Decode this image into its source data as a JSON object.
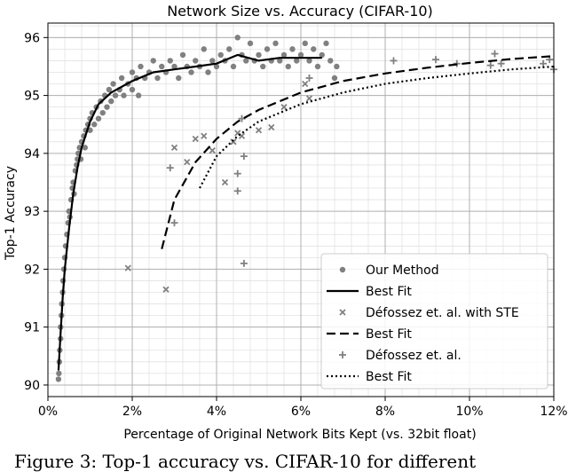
{
  "caption": "Figure 3: Top-1 accuracy vs. CIFAR-10 for different",
  "chart_data": {
    "type": "scatter",
    "title": "Network Size vs. Accuracy (CIFAR-10)",
    "xlabel": "Percentage of Original Network Bits Kept (vs. 32bit float)",
    "ylabel": "Top-1 Accuracy",
    "xlim": [
      0,
      12
    ],
    "ylim": [
      89.8,
      96.25
    ],
    "x_ticks": [
      0,
      2,
      4,
      6,
      8,
      10,
      12
    ],
    "x_tick_labels": [
      "0%",
      "2%",
      "4%",
      "6%",
      "8%",
      "10%",
      "12%"
    ],
    "y_ticks": [
      90,
      91,
      92,
      93,
      94,
      95,
      96
    ],
    "y_tick_labels": [
      "90",
      "91",
      "92",
      "93",
      "94",
      "95",
      "96"
    ],
    "grid": "major and minor",
    "legend_position": "lower-right",
    "colors": {
      "our_method": "#808080",
      "fit": "#000000",
      "grid_major": "#b0b0b0",
      "grid_minor": "#e2e2e2"
    },
    "series": [
      {
        "name": "Our Method",
        "kind": "scatter",
        "marker": "circle",
        "points": [
          [
            0.25,
            90.1
          ],
          [
            0.26,
            90.2
          ],
          [
            0.27,
            90.4
          ],
          [
            0.28,
            90.6
          ],
          [
            0.3,
            90.8
          ],
          [
            0.3,
            91.0
          ],
          [
            0.32,
            91.2
          ],
          [
            0.33,
            91.4
          ],
          [
            0.35,
            91.6
          ],
          [
            0.36,
            91.8
          ],
          [
            0.38,
            92.0
          ],
          [
            0.4,
            92.2
          ],
          [
            0.42,
            92.4
          ],
          [
            0.45,
            92.6
          ],
          [
            0.48,
            92.8
          ],
          [
            0.5,
            93.0
          ],
          [
            0.52,
            92.9
          ],
          [
            0.55,
            93.2
          ],
          [
            0.58,
            93.4
          ],
          [
            0.6,
            93.5
          ],
          [
            0.62,
            93.3
          ],
          [
            0.65,
            93.7
          ],
          [
            0.68,
            93.8
          ],
          [
            0.7,
            93.9
          ],
          [
            0.72,
            94.0
          ],
          [
            0.75,
            94.1
          ],
          [
            0.78,
            93.9
          ],
          [
            0.8,
            94.2
          ],
          [
            0.85,
            94.3
          ],
          [
            0.88,
            94.1
          ],
          [
            0.9,
            94.4
          ],
          [
            0.95,
            94.5
          ],
          [
            1.0,
            94.4
          ],
          [
            1.0,
            94.6
          ],
          [
            1.05,
            94.7
          ],
          [
            1.1,
            94.5
          ],
          [
            1.15,
            94.8
          ],
          [
            1.2,
            94.6
          ],
          [
            1.25,
            94.9
          ],
          [
            1.3,
            94.7
          ],
          [
            1.35,
            95.0
          ],
          [
            1.4,
            94.8
          ],
          [
            1.45,
            95.1
          ],
          [
            1.5,
            94.9
          ],
          [
            1.55,
            95.2
          ],
          [
            1.6,
            95.0
          ],
          [
            1.7,
            95.1
          ],
          [
            1.75,
            95.3
          ],
          [
            1.8,
            95.0
          ],
          [
            1.9,
            95.2
          ],
          [
            2.0,
            95.1
          ],
          [
            2.0,
            95.4
          ],
          [
            2.1,
            95.3
          ],
          [
            2.15,
            95.0
          ],
          [
            2.2,
            95.5
          ],
          [
            2.3,
            95.3
          ],
          [
            2.4,
            95.4
          ],
          [
            2.5,
            95.6
          ],
          [
            2.6,
            95.3
          ],
          [
            2.7,
            95.5
          ],
          [
            2.8,
            95.4
          ],
          [
            2.9,
            95.6
          ],
          [
            3.0,
            95.5
          ],
          [
            3.1,
            95.3
          ],
          [
            3.2,
            95.7
          ],
          [
            3.3,
            95.5
          ],
          [
            3.4,
            95.4
          ],
          [
            3.5,
            95.6
          ],
          [
            3.6,
            95.5
          ],
          [
            3.7,
            95.8
          ],
          [
            3.8,
            95.4
          ],
          [
            3.9,
            95.6
          ],
          [
            4.0,
            95.5
          ],
          [
            4.1,
            95.7
          ],
          [
            4.2,
            95.6
          ],
          [
            4.3,
            95.8
          ],
          [
            4.4,
            95.5
          ],
          [
            4.5,
            96.0
          ],
          [
            4.6,
            95.7
          ],
          [
            4.7,
            95.6
          ],
          [
            4.8,
            95.9
          ],
          [
            4.9,
            95.6
          ],
          [
            5.0,
            95.7
          ],
          [
            5.1,
            95.5
          ],
          [
            5.2,
            95.8
          ],
          [
            5.3,
            95.6
          ],
          [
            5.4,
            95.9
          ],
          [
            5.5,
            95.6
          ],
          [
            5.6,
            95.7
          ],
          [
            5.7,
            95.5
          ],
          [
            5.8,
            95.8
          ],
          [
            5.9,
            95.6
          ],
          [
            6.0,
            95.7
          ],
          [
            6.1,
            95.9
          ],
          [
            6.2,
            95.6
          ],
          [
            6.3,
            95.8
          ],
          [
            6.4,
            95.5
          ],
          [
            6.5,
            95.7
          ],
          [
            6.6,
            95.9
          ],
          [
            6.7,
            95.6
          ],
          [
            6.8,
            95.3
          ],
          [
            6.85,
            95.5
          ]
        ]
      },
      {
        "name": "Best Fit",
        "kind": "line",
        "dash": "solid",
        "points": [
          [
            0.25,
            90.25
          ],
          [
            0.3,
            90.9
          ],
          [
            0.35,
            91.5
          ],
          [
            0.4,
            92.0
          ],
          [
            0.5,
            92.7
          ],
          [
            0.6,
            93.3
          ],
          [
            0.7,
            93.75
          ],
          [
            0.8,
            94.1
          ],
          [
            1.0,
            94.55
          ],
          [
            1.2,
            94.85
          ],
          [
            1.5,
            95.05
          ],
          [
            2.0,
            95.25
          ],
          [
            2.5,
            95.4
          ],
          [
            3.0,
            95.45
          ],
          [
            3.5,
            95.5
          ],
          [
            4.0,
            95.55
          ],
          [
            4.5,
            95.7
          ],
          [
            5.0,
            95.6
          ],
          [
            5.5,
            95.65
          ],
          [
            6.0,
            95.65
          ],
          [
            6.5,
            95.65
          ]
        ]
      },
      {
        "name": "Défossez et. al. with STE",
        "kind": "scatter",
        "marker": "x",
        "points": [
          [
            1.9,
            92.02
          ],
          [
            2.8,
            91.65
          ],
          [
            3.0,
            94.1
          ],
          [
            3.3,
            93.85
          ],
          [
            3.5,
            94.25
          ],
          [
            3.7,
            94.3
          ],
          [
            3.9,
            94.05
          ],
          [
            4.2,
            93.5
          ],
          [
            4.4,
            94.2
          ],
          [
            4.5,
            94.35
          ],
          [
            4.6,
            94.3
          ],
          [
            5.0,
            94.4
          ],
          [
            5.3,
            94.45
          ],
          [
            5.6,
            94.8
          ],
          [
            6.1,
            95.2
          ],
          [
            6.2,
            94.95
          ]
        ]
      },
      {
        "name": "Best Fit",
        "kind": "line",
        "dash": "dashed",
        "points": [
          [
            2.7,
            92.35
          ],
          [
            3.0,
            93.2
          ],
          [
            3.5,
            93.85
          ],
          [
            4.0,
            94.25
          ],
          [
            4.5,
            94.55
          ],
          [
            5.0,
            94.75
          ],
          [
            6.0,
            95.05
          ],
          [
            7.0,
            95.25
          ],
          [
            8.0,
            95.38
          ],
          [
            9.0,
            95.48
          ],
          [
            10.0,
            95.56
          ],
          [
            11.0,
            95.63
          ],
          [
            12.0,
            95.68
          ]
        ]
      },
      {
        "name": "Défossez et. al.",
        "kind": "scatter",
        "marker": "plus",
        "points": [
          [
            2.9,
            93.75
          ],
          [
            3.0,
            92.8
          ],
          [
            4.5,
            93.35
          ],
          [
            4.5,
            93.65
          ],
          [
            4.6,
            94.6
          ],
          [
            4.65,
            93.95
          ],
          [
            4.65,
            92.1
          ],
          [
            6.2,
            95.3
          ],
          [
            8.2,
            95.6
          ],
          [
            9.2,
            95.62
          ],
          [
            9.7,
            95.55
          ],
          [
            10.5,
            95.52
          ],
          [
            10.6,
            95.72
          ],
          [
            10.75,
            95.55
          ],
          [
            11.75,
            95.55
          ],
          [
            11.9,
            95.62
          ],
          [
            12.0,
            95.45
          ]
        ]
      },
      {
        "name": "Best Fit",
        "kind": "line",
        "dash": "dotted",
        "points": [
          [
            3.6,
            93.4
          ],
          [
            4.0,
            93.95
          ],
          [
            4.5,
            94.3
          ],
          [
            5.0,
            94.55
          ],
          [
            6.0,
            94.85
          ],
          [
            7.0,
            95.05
          ],
          [
            8.0,
            95.2
          ],
          [
            9.0,
            95.3
          ],
          [
            10.0,
            95.38
          ],
          [
            11.0,
            95.45
          ],
          [
            12.0,
            95.5
          ]
        ]
      }
    ]
  }
}
